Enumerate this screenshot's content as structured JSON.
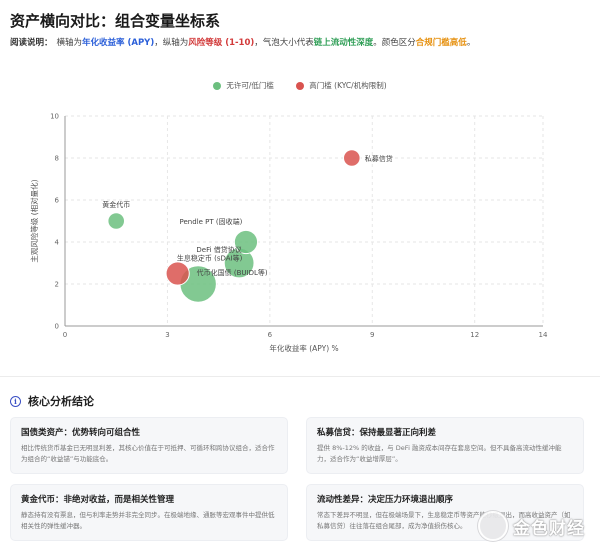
{
  "header": {
    "title": "资产横向对比：组合变量坐标系",
    "reading_label": "阅读说明：",
    "reading_parts": [
      {
        "text": "横轴为",
        "style": "plain"
      },
      {
        "text": "年化收益率 (APY)",
        "style": "blue"
      },
      {
        "text": "，纵轴为",
        "style": "plain"
      },
      {
        "text": "风险等级 (1-10)",
        "style": "red"
      },
      {
        "text": "，气泡大小代表",
        "style": "plain"
      },
      {
        "text": "链上流动性深度",
        "style": "green"
      },
      {
        "text": "。颜色区分",
        "style": "plain"
      },
      {
        "text": "合规门槛高低",
        "style": "orange"
      },
      {
        "text": "。",
        "style": "plain"
      }
    ]
  },
  "colors": {
    "low_threshold": "#6cbf7f",
    "high_threshold": "#d9534f",
    "accent_blue": "#3a4fc4"
  },
  "legend": {
    "items": [
      {
        "label": "无许可/低门槛",
        "color": "#6cbf7f"
      },
      {
        "label": "高门槛 (KYC/机构限制)",
        "color": "#d9534f"
      }
    ]
  },
  "chart_data": {
    "type": "scatter",
    "title": "",
    "xlabel": "年化收益率 (APY) %",
    "ylabel": "主观风险等级 (相对量化)",
    "xlim": [
      0,
      14
    ],
    "ylim": [
      0,
      10
    ],
    "xticks": [
      0,
      3,
      6,
      9,
      12,
      14
    ],
    "yticks": [
      0,
      2,
      4,
      6,
      8,
      10
    ],
    "grid": true,
    "legend_position": "top-center",
    "series": [
      {
        "name": "无许可/低门槛",
        "color": "#6cbf7f",
        "points": [
          {
            "label": "黄金代币",
            "x": 1.5,
            "y": 5.0,
            "size": 2
          },
          {
            "label": "Pendle PT (固收端)",
            "x": 5.3,
            "y": 4.0,
            "size": 3
          },
          {
            "label": "DeFi 借贷协议",
            "x": 5.1,
            "y": 3.0,
            "size": 4
          },
          {
            "label": "代币化国债 (BUIDL等)",
            "x": 3.9,
            "y": 2.0,
            "size": 5
          }
        ]
      },
      {
        "name": "高门槛 (KYC/机构限制)",
        "color": "#d9534f",
        "points": [
          {
            "label": "私募信贷",
            "x": 8.4,
            "y": 8.0,
            "size": 2
          },
          {
            "label": "生息稳定币 (sDAI等)",
            "x": 3.3,
            "y": 2.5,
            "size": 3
          }
        ]
      }
    ]
  },
  "analysis": {
    "title": "核心分析结论",
    "cards": [
      {
        "title": "国债类资产：优势转向可组合性",
        "body": "相比传统货币基金已无明显利差，其核心价值在于可抵押、可循环和跨协议组合，适合作为组合的“收益锚”与功能底仓。"
      },
      {
        "title": "私募信贷：保持最显著正向利差",
        "body": "提供 8%-12% 的收益，与 DeFi 融资成本间存在套息空间。但不具备高流动性缓冲能力，适合作为“收益增厚层”。"
      },
      {
        "title": "黄金代币：非绝对收益，而是相关性管理",
        "body": "静态持有没有票息，但与利率走势并非完全同步。在极端地缘、通胀等宏观事件中提供低相关性的弹性缓冲器。"
      },
      {
        "title": "流动性差异：决定压力环境退出顺序",
        "body": "常态下差异不明显，但在极端场景下，生息稳定币等资产能秒级退出，而高收益资产（如私募信贷）往往落在组合尾部，成为净值损伤核心。"
      }
    ]
  },
  "watermark": {
    "text": "金色财经"
  }
}
